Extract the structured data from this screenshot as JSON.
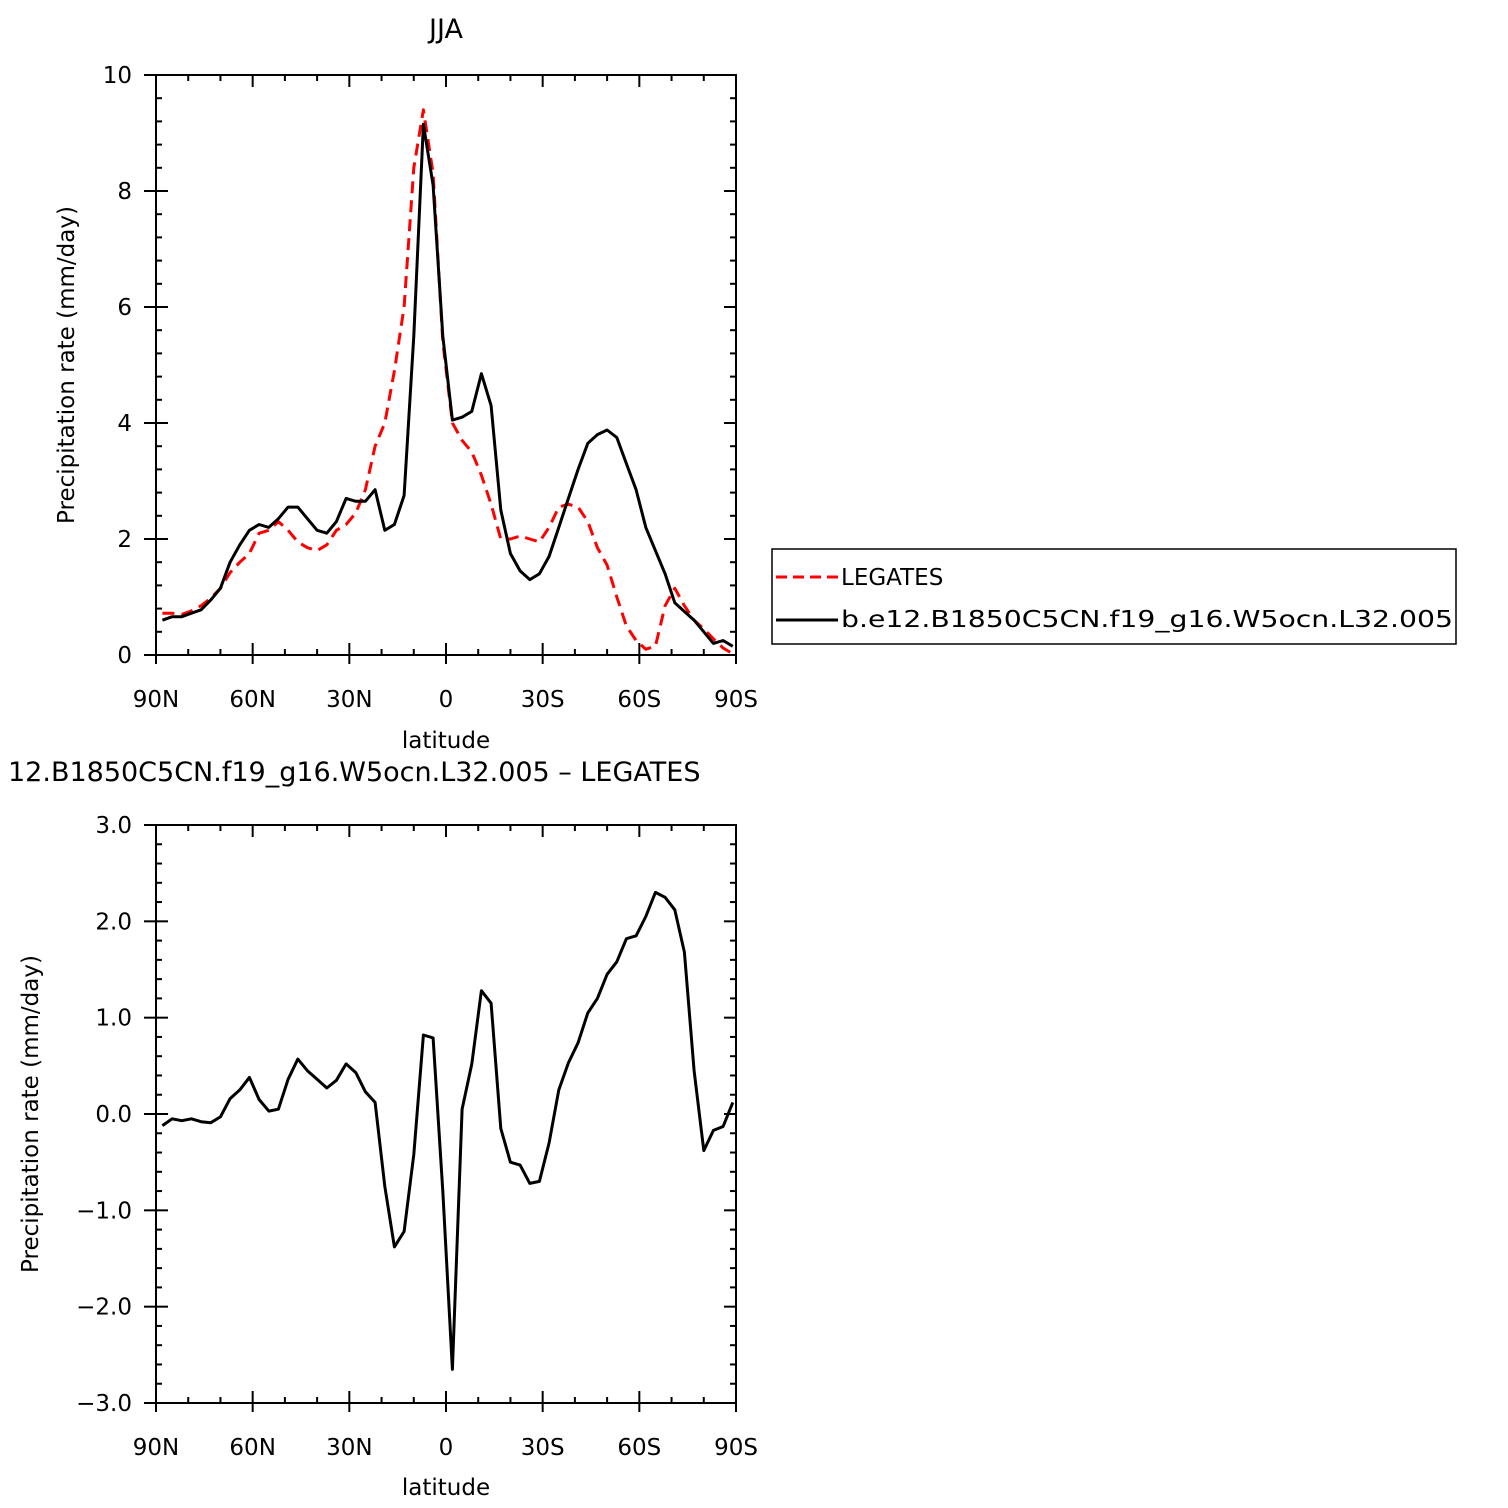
{
  "chart_data": [
    {
      "type": "line",
      "title": "JJA",
      "xlabel": "latitude",
      "ylabel": "Precipitation rate (mm/day)",
      "xlim": [
        -90,
        90
      ],
      "ylim": [
        0,
        10
      ],
      "xticks": [
        -90,
        -60,
        -30,
        0,
        30,
        60,
        90
      ],
      "xtick_labels": [
        "90N",
        "60N",
        "30N",
        "0",
        "30S",
        "60S",
        "90S"
      ],
      "yticks": [
        0,
        2,
        4,
        6,
        8,
        10
      ],
      "ytick_labels": [
        "0",
        "2",
        "4",
        "6",
        "8",
        "10"
      ],
      "grid": false,
      "legend_position": "right, outside plot",
      "series": [
        {
          "name": "LEGATES",
          "color": "#ff0000",
          "style": "dashed",
          "x": [
            -88,
            -85,
            -82,
            -79,
            -76,
            -73,
            -70,
            -67,
            -64,
            -61,
            -58,
            -55,
            -52,
            -49,
            -46,
            -43,
            -40,
            -37,
            -34,
            -31,
            -28,
            -25,
            -22,
            -19,
            -16,
            -13,
            -10,
            -7,
            -4,
            -1,
            2,
            5,
            8,
            11,
            14,
            17,
            20,
            23,
            26,
            29,
            32,
            35,
            38,
            41,
            44,
            47,
            50,
            53,
            56,
            59,
            62,
            65,
            68,
            71,
            74,
            77,
            80,
            83,
            86,
            89
          ],
          "values": [
            0.72,
            0.72,
            0.7,
            0.76,
            0.85,
            0.98,
            1.15,
            1.42,
            1.6,
            1.75,
            2.1,
            2.15,
            2.3,
            2.15,
            1.95,
            1.85,
            1.8,
            1.9,
            2.15,
            2.25,
            2.45,
            2.85,
            3.6,
            4.0,
            4.9,
            6.0,
            8.4,
            9.4,
            8.3,
            5.4,
            4.0,
            3.7,
            3.5,
            3.1,
            2.6,
            2.0,
            2.0,
            2.05,
            2.0,
            1.95,
            2.2,
            2.55,
            2.6,
            2.55,
            2.3,
            1.85,
            1.55,
            1.0,
            0.5,
            0.25,
            0.1,
            0.15,
            0.85,
            1.15,
            0.85,
            0.6,
            0.45,
            0.28,
            0.12,
            0.02
          ]
        },
        {
          "name": "b.e12.B1850C5CN.f19_g16.W5ocn.L32.005",
          "color": "#000000",
          "style": "solid",
          "x": [
            -88,
            -85,
            -82,
            -79,
            -76,
            -73,
            -70,
            -67,
            -64,
            -61,
            -58,
            -55,
            -52,
            -49,
            -46,
            -43,
            -40,
            -37,
            -34,
            -31,
            -28,
            -25,
            -22,
            -19,
            -16,
            -13,
            -10,
            -7,
            -4,
            -1,
            2,
            5,
            8,
            11,
            14,
            17,
            20,
            23,
            26,
            29,
            32,
            35,
            38,
            41,
            44,
            47,
            50,
            53,
            56,
            59,
            62,
            65,
            68,
            71,
            74,
            77,
            80,
            83,
            86,
            89
          ],
          "values": [
            0.6,
            0.66,
            0.66,
            0.72,
            0.78,
            0.95,
            1.15,
            1.6,
            1.9,
            2.15,
            2.25,
            2.2,
            2.35,
            2.55,
            2.55,
            2.35,
            2.15,
            2.1,
            2.3,
            2.7,
            2.65,
            2.65,
            2.85,
            2.15,
            2.25,
            2.75,
            5.5,
            9.15,
            8.1,
            5.5,
            4.05,
            4.1,
            4.2,
            4.85,
            4.3,
            2.5,
            1.75,
            1.45,
            1.3,
            1.4,
            1.7,
            2.2,
            2.7,
            3.2,
            3.65,
            3.8,
            3.88,
            3.75,
            3.3,
            2.85,
            2.2,
            1.8,
            1.4,
            0.9,
            0.75,
            0.6,
            0.4,
            0.2,
            0.25,
            0.15
          ]
        }
      ]
    },
    {
      "type": "line",
      "title": "12.B1850C5CN.f19_g16.W5ocn.L32.005 – LEGATES",
      "xlabel": "latitude",
      "ylabel": "Precipitation rate (mm/day)",
      "xlim": [
        -90,
        90
      ],
      "ylim": [
        -3,
        3
      ],
      "xticks": [
        -90,
        -60,
        -30,
        0,
        30,
        60,
        90
      ],
      "xtick_labels": [
        "90N",
        "60N",
        "30N",
        "0",
        "30S",
        "60S",
        "90S"
      ],
      "yticks": [
        -3,
        -2,
        -1,
        0,
        1,
        2,
        3
      ],
      "ytick_labels": [
        "−3.0",
        "−2.0",
        "−1.0",
        "0.0",
        "1.0",
        "2.0",
        "3.0"
      ],
      "grid": false,
      "series": [
        {
          "color": "#000000",
          "style": "solid",
          "x": [
            -88,
            -85,
            -82,
            -79,
            -76,
            -73,
            -70,
            -67,
            -64,
            -61,
            -58,
            -55,
            -52,
            -49,
            -46,
            -43,
            -40,
            -37,
            -34,
            -31,
            -28,
            -25,
            -22,
            -19,
            -16,
            -13,
            -10,
            -7,
            -4,
            -1,
            2,
            5,
            8,
            11,
            14,
            17,
            20,
            23,
            26,
            29,
            32,
            35,
            38,
            41,
            44,
            47,
            50,
            53,
            56,
            59,
            62,
            65,
            68,
            71,
            74,
            77,
            80,
            83,
            86,
            89
          ],
          "values": [
            -0.12,
            -0.05,
            -0.07,
            -0.05,
            -0.08,
            -0.09,
            -0.03,
            0.16,
            0.25,
            0.38,
            0.15,
            0.03,
            0.05,
            0.36,
            0.57,
            0.45,
            0.36,
            0.27,
            0.35,
            0.52,
            0.43,
            0.23,
            0.12,
            -0.75,
            -1.38,
            -1.22,
            -0.42,
            0.82,
            0.79,
            -0.8,
            -2.65,
            0.05,
            0.52,
            1.28,
            1.15,
            -0.15,
            -0.5,
            -0.53,
            -0.72,
            -0.7,
            -0.3,
            0.25,
            0.53,
            0.74,
            1.05,
            1.2,
            1.45,
            1.58,
            1.82,
            1.85,
            2.05,
            2.3,
            2.25,
            2.12,
            1.68,
            0.45,
            -0.38,
            -0.17,
            -0.13,
            0.12
          ]
        }
      ]
    }
  ]
}
